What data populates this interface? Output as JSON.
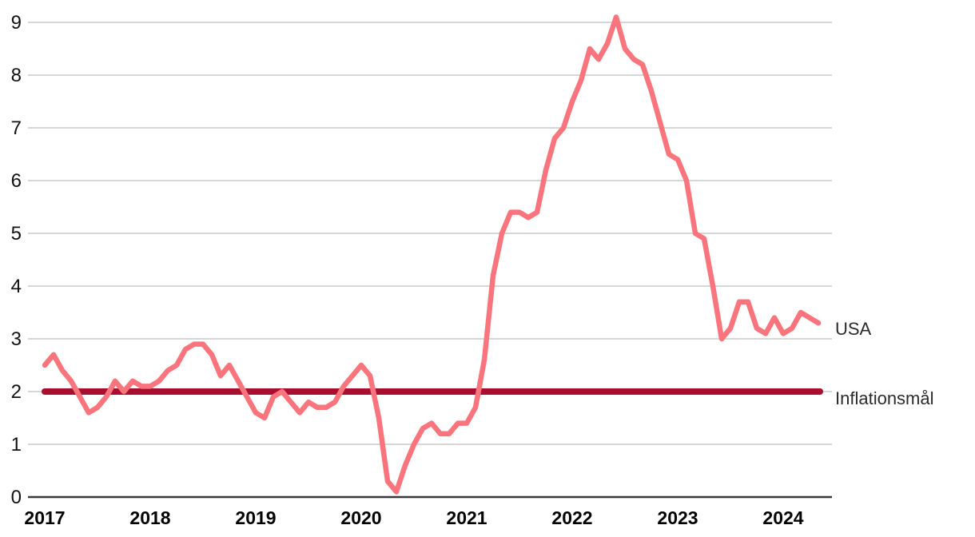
{
  "chart_data": {
    "type": "line",
    "title": "",
    "xlabel": "",
    "ylabel": "",
    "ylim": [
      0,
      9.35
    ],
    "grid": "horizontal",
    "legend_position": "right-of-line-ends",
    "y_ticks": [
      0,
      1,
      2,
      3,
      4,
      5,
      6,
      7,
      8,
      9
    ],
    "y_tick_labels": [
      "0",
      "1",
      "2",
      "3",
      "4",
      "5",
      "6",
      "7",
      "8",
      "9"
    ],
    "x_tick_labels": [
      "2017",
      "2018",
      "2019",
      "2020",
      "2021",
      "2022",
      "2023",
      "2024"
    ],
    "x_frequency": "monthly",
    "x_range": "Jan 2017 - May 2024",
    "series": [
      {
        "name": "USA",
        "color": "#F9747C",
        "values": [
          2.5,
          2.7,
          2.4,
          2.2,
          1.9,
          1.6,
          1.7,
          1.9,
          2.2,
          2.0,
          2.2,
          2.1,
          2.1,
          2.2,
          2.4,
          2.5,
          2.8,
          2.9,
          2.9,
          2.7,
          2.3,
          2.5,
          2.2,
          1.9,
          1.6,
          1.5,
          1.9,
          2.0,
          1.8,
          1.6,
          1.8,
          1.7,
          1.7,
          1.8,
          2.1,
          2.3,
          2.5,
          2.3,
          1.5,
          0.3,
          0.1,
          0.6,
          1.0,
          1.3,
          1.4,
          1.2,
          1.2,
          1.4,
          1.4,
          1.7,
          2.6,
          4.2,
          5.0,
          5.4,
          5.4,
          5.3,
          5.4,
          6.2,
          6.8,
          7.0,
          7.5,
          7.9,
          8.5,
          8.3,
          8.6,
          9.1,
          8.5,
          8.3,
          8.2,
          7.7,
          7.1,
          6.5,
          6.4,
          6.0,
          5.0,
          4.9,
          4.0,
          3.0,
          3.2,
          3.7,
          3.7,
          3.2,
          3.1,
          3.4,
          3.1,
          3.2,
          3.5,
          3.4,
          3.3
        ]
      },
      {
        "name": "Inflationsmål",
        "color": "#A80E2F",
        "type": "constant",
        "value": 2
      }
    ],
    "colors": {
      "gridline": "#C9C9C9",
      "axis_line": "#383838",
      "tick_text": "#111111",
      "label_text": "#2b2b2b"
    }
  }
}
